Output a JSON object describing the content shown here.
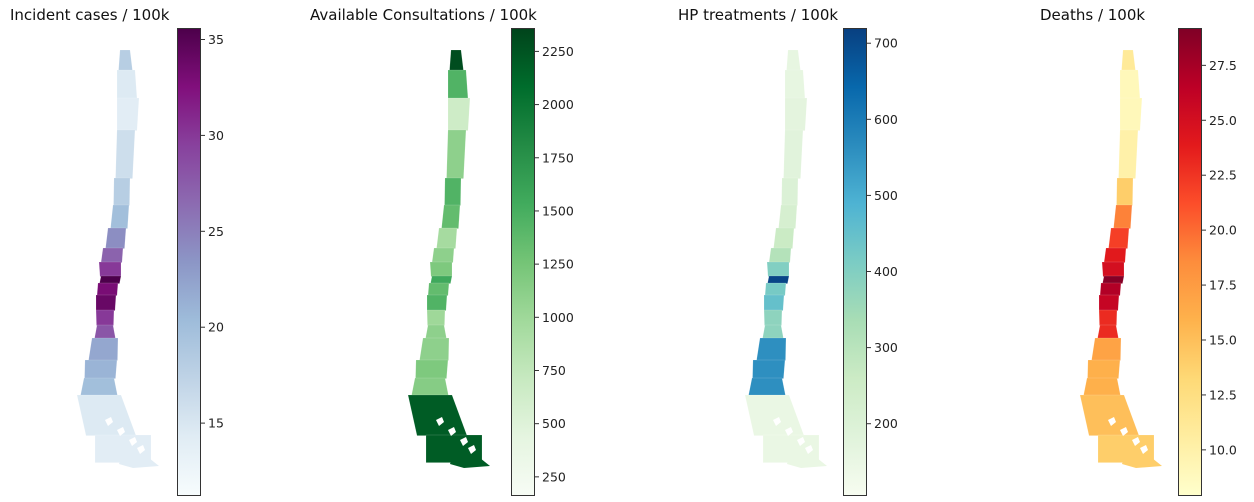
{
  "chart_data": [
    {
      "type": "choropleth-map",
      "title": "Incident cases / 100k",
      "colormap": "BuPu",
      "colors": [
        "#f7fcfd",
        "#e0ecf4",
        "#bfd3e6",
        "#9ebcda",
        "#8c96c6",
        "#8c6bb1",
        "#88419d",
        "#810f7c",
        "#4d004b"
      ],
      "vmin": 11.2,
      "vmax": 35.6,
      "ticks": [
        15,
        20,
        25,
        30,
        35
      ],
      "tick_labels": [
        "15",
        "20",
        "25",
        "30",
        "35"
      ],
      "region_values": [
        18,
        14.5,
        14,
        16,
        18,
        20,
        24,
        27,
        30,
        35.6,
        33,
        34,
        30,
        28,
        22,
        21,
        20,
        14.5,
        14
      ]
    },
    {
      "type": "choropleth-map",
      "title": "Available Consultations / 100k",
      "colormap": "Greens",
      "colors": [
        "#f7fcf5",
        "#e5f5e0",
        "#c7e9c0",
        "#a1d99b",
        "#74c476",
        "#41ab5d",
        "#238b45",
        "#006d2c",
        "#00441b"
      ],
      "vmin": 160,
      "vmax": 2360,
      "ticks": [
        250,
        500,
        750,
        1000,
        1250,
        1500,
        1750,
        2000,
        2250
      ],
      "tick_labels": [
        "250",
        "500",
        "750",
        "1000",
        "1250",
        "1500",
        "1750",
        "2000",
        "2250"
      ],
      "region_values": [
        2300,
        1450,
        650,
        1100,
        1450,
        1350,
        950,
        1100,
        1200,
        1550,
        1350,
        1450,
        1000,
        1100,
        1100,
        1200,
        1150,
        2200,
        2200
      ]
    },
    {
      "type": "choropleth-map",
      "title": "HP treatments / 100k",
      "colormap": "GnBu",
      "colors": [
        "#f7fcf0",
        "#e0f3db",
        "#ccebc5",
        "#a8ddb5",
        "#7bccc4",
        "#4eb3d3",
        "#2b8cbe",
        "#0868ac",
        "#084081"
      ],
      "vmin": 105,
      "vmax": 720,
      "ticks": [
        200,
        300,
        400,
        500,
        600,
        700
      ],
      "tick_labels": [
        "200",
        "300",
        "400",
        "500",
        "600",
        "700"
      ],
      "region_values": [
        160,
        160,
        170,
        180,
        200,
        220,
        260,
        310,
        400,
        710,
        420,
        450,
        380,
        380,
        560,
        560,
        560,
        150,
        150
      ]
    },
    {
      "type": "choropleth-map",
      "title": "Deaths / 100k",
      "colormap": "YlOrRd",
      "colors": [
        "#ffffcc",
        "#ffeda0",
        "#fed976",
        "#feb24c",
        "#fd8d3c",
        "#fc4e2a",
        "#e31a1c",
        "#bd0026",
        "#800026"
      ],
      "vmin": 7.9,
      "vmax": 29.2,
      "ticks": [
        10.0,
        12.5,
        15.0,
        17.5,
        20.0,
        22.5,
        25.0,
        27.5
      ],
      "tick_labels": [
        "10.0",
        "12.5",
        "15.0",
        "17.5",
        "20.0",
        "22.5",
        "25.0",
        "27.5"
      ],
      "region_values": [
        11,
        9,
        9,
        10,
        14,
        19,
        22,
        24,
        25,
        29,
        27,
        26,
        23,
        23,
        17,
        16,
        16,
        15,
        14
      ]
    }
  ]
}
